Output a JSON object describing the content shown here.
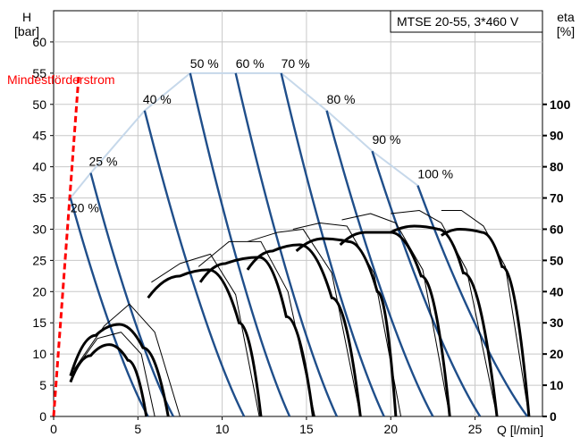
{
  "chart_data": {
    "type": "line",
    "title": "MTSE 20-55, 3*460 V",
    "y_left": {
      "label_line1": "H",
      "label_line2": "[bar]",
      "range": [
        0,
        65
      ],
      "ticks": [
        0,
        5,
        10,
        15,
        20,
        25,
        30,
        35,
        40,
        45,
        50,
        55,
        60
      ]
    },
    "y_right": {
      "label_line1": "eta",
      "label_line2": "[%]",
      "range": [
        0,
        100
      ],
      "ticks": [
        0,
        10,
        20,
        30,
        40,
        50,
        60,
        70,
        80,
        90,
        100
      ]
    },
    "x": {
      "label": "Q [l/min]",
      "range": [
        0,
        29
      ],
      "ticks": [
        0,
        5,
        10,
        15,
        20,
        25
      ]
    },
    "grid": true,
    "min_flow": {
      "label": "Mindestförderstrom",
      "color": "#ff0000",
      "x": [
        0,
        1.5
      ],
      "y": [
        0,
        55
      ]
    },
    "speed_curves": [
      {
        "name": "20 %",
        "q_max": 5.6,
        "h_max": 35
      },
      {
        "name": "25 %",
        "q_max": 7.1,
        "h_max": 39
      },
      {
        "name": "40 %",
        "q_max": 11.3,
        "h_max": 49
      },
      {
        "name": "50 %",
        "q_max": 14.0,
        "h_max": 55
      },
      {
        "name": "60 %",
        "q_max": 16.8,
        "h_max": 55
      },
      {
        "name": "70 %",
        "q_max": 19.6,
        "h_max": 55
      },
      {
        "name": "80 %",
        "q_max": 22.5,
        "h_max": 49
      },
      {
        "name": "90 %",
        "q_max": 25.3,
        "h_max": 42.5
      },
      {
        "name": "100 %",
        "q_max": 28.1,
        "h_max": 37
      }
    ],
    "speed_envelope": [
      [
        1,
        35
      ],
      [
        2.2,
        39
      ],
      [
        5.4,
        49
      ],
      [
        8.1,
        55
      ],
      [
        10.8,
        55
      ],
      [
        13.5,
        55
      ],
      [
        16.2,
        49
      ],
      [
        18.9,
        42.5
      ],
      [
        21.6,
        37
      ]
    ],
    "efficiency_curves": [
      {
        "name": "20 %",
        "points": [
          [
            1.0,
            11
          ],
          [
            2.2,
            19.5
          ],
          [
            3.3,
            23
          ],
          [
            4.4,
            18
          ],
          [
            5.5,
            0
          ]
        ]
      },
      {
        "name": "25 %",
        "points": [
          [
            1.0,
            13
          ],
          [
            2.5,
            26
          ],
          [
            3.9,
            29.5
          ],
          [
            5.3,
            22
          ],
          [
            6.8,
            0
          ]
        ]
      },
      {
        "name": "40 %",
        "points": [
          [
            5.6,
            38
          ],
          [
            7.5,
            45
          ],
          [
            9.2,
            47
          ],
          [
            11.0,
            30
          ],
          [
            12.3,
            0
          ]
        ]
      },
      {
        "name": "50 %",
        "points": [
          [
            8.7,
            43
          ],
          [
            10.2,
            49
          ],
          [
            12.2,
            51
          ],
          [
            13.8,
            32
          ],
          [
            15.4,
            0
          ]
        ]
      },
      {
        "name": "60 %",
        "points": [
          [
            11.5,
            47
          ],
          [
            13.0,
            53
          ],
          [
            14.6,
            55
          ],
          [
            16.5,
            38
          ],
          [
            18.2,
            0
          ]
        ]
      },
      {
        "name": "70 %",
        "points": [
          [
            14.4,
            53
          ],
          [
            16.0,
            57
          ],
          [
            17.5,
            56
          ],
          [
            19.2,
            40
          ],
          [
            20.3,
            0
          ]
        ]
      },
      {
        "name": "80 %",
        "points": [
          [
            17.0,
            55
          ],
          [
            18.5,
            59
          ],
          [
            20.0,
            59
          ],
          [
            21.8,
            45
          ],
          [
            23.5,
            0
          ]
        ]
      },
      {
        "name": "90 %",
        "points": [
          [
            20.0,
            59
          ],
          [
            21.4,
            61
          ],
          [
            22.8,
            60
          ],
          [
            24.3,
            46
          ],
          [
            26.3,
            0
          ]
        ]
      },
      {
        "name": "100 %",
        "points": [
          [
            23.0,
            58
          ],
          [
            24.1,
            60
          ],
          [
            25.4,
            59
          ],
          [
            26.6,
            48
          ],
          [
            28.2,
            0
          ]
        ]
      }
    ],
    "power_curves": [
      {
        "points": [
          [
            1.0,
            13
          ],
          [
            2.6,
            25
          ],
          [
            4.0,
            27
          ],
          [
            5.2,
            20
          ],
          [
            6.0,
            0
          ]
        ]
      },
      {
        "points": [
          [
            1.2,
            15
          ],
          [
            3.0,
            29
          ],
          [
            4.5,
            36
          ],
          [
            6.0,
            27
          ],
          [
            7.5,
            0
          ]
        ]
      },
      {
        "points": [
          [
            5.8,
            43
          ],
          [
            7.5,
            49
          ],
          [
            9.3,
            52
          ],
          [
            10.8,
            39
          ],
          [
            12.2,
            0
          ]
        ]
      },
      {
        "points": [
          [
            8.6,
            48
          ],
          [
            10.4,
            56
          ],
          [
            12.3,
            56
          ],
          [
            13.9,
            40
          ],
          [
            15.5,
            0
          ]
        ]
      },
      {
        "points": [
          [
            11.5,
            56
          ],
          [
            13.3,
            59
          ],
          [
            14.8,
            60
          ],
          [
            16.5,
            46
          ],
          [
            18.2,
            0
          ]
        ]
      },
      {
        "points": [
          [
            14.2,
            60
          ],
          [
            15.8,
            62
          ],
          [
            17.4,
            61
          ],
          [
            19.0,
            46
          ],
          [
            20.6,
            0
          ]
        ]
      },
      {
        "points": [
          [
            17.1,
            63
          ],
          [
            18.8,
            65
          ],
          [
            20.3,
            62
          ],
          [
            21.9,
            47
          ],
          [
            23.5,
            0
          ]
        ]
      },
      {
        "points": [
          [
            20.0,
            65
          ],
          [
            21.7,
            66
          ],
          [
            23.0,
            62
          ],
          [
            24.5,
            47
          ],
          [
            26.3,
            0
          ]
        ]
      },
      {
        "points": [
          [
            23.0,
            66
          ],
          [
            24.2,
            66
          ],
          [
            25.5,
            61
          ],
          [
            26.8,
            48
          ],
          [
            28.2,
            0
          ]
        ]
      }
    ]
  }
}
